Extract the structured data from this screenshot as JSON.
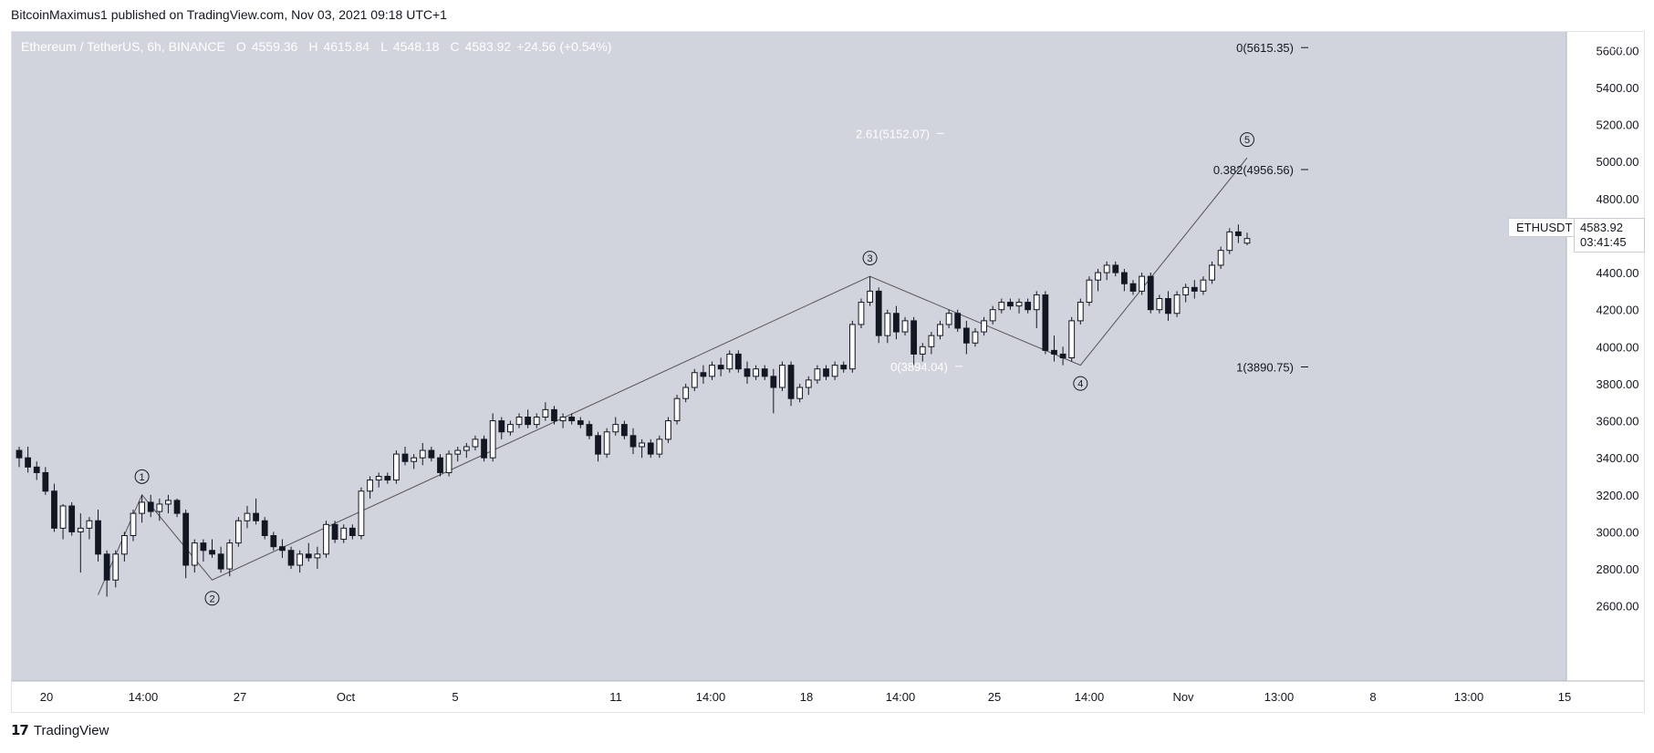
{
  "header": {
    "published": "BitcoinMaximus1 published on TradingView.com, Nov 03, 2021 09:18 UTC+1"
  },
  "legend": {
    "symbol": "Ethereum / TetherUS, 6h, BINANCE",
    "open_key": "O",
    "open": "4559.36",
    "high_key": "H",
    "high": "4615.84",
    "low_key": "L",
    "low": "4548.18",
    "close_key": "C",
    "close": "4583.92",
    "change": "+24.56 (+0.54%)"
  },
  "price_axis": {
    "unit": "USDT",
    "ticks": [
      "5600.00",
      "5400.00",
      "5200.00",
      "5000.00",
      "4800.00",
      "4400.00",
      "4200.00",
      "4000.00",
      "3800.00",
      "3600.00",
      "3400.00",
      "3200.00",
      "3000.00",
      "2800.00",
      "2600.00"
    ]
  },
  "time_axis": {
    "ticks": [
      "20",
      "14:00",
      "27",
      "Oct",
      "5",
      "11",
      "14:00",
      "18",
      "14:00",
      "25",
      "14:00",
      "Nov",
      "13:00",
      "8",
      "13:00",
      "15"
    ]
  },
  "last_price": {
    "symbol": "ETHUSDT",
    "price": "4583.92",
    "countdown": "03:41:45"
  },
  "fib_labels": [
    {
      "text": "0(5615.35)"
    },
    {
      "text": "2.61(5152.07)"
    },
    {
      "text": "0.382(4956.56)"
    },
    {
      "text": "0(3894.04)"
    },
    {
      "text": "1(3890.75)"
    }
  ],
  "wave_labels": [
    "1",
    "2",
    "3",
    "4",
    "5"
  ],
  "footer": {
    "brand": "TradingView",
    "logo": "17"
  },
  "colors": {
    "background": "#d1d4dc",
    "candle": "#131722",
    "candle_up_fill": "#ffffff",
    "candle_down_fill": "#131722",
    "fib_text_white": "#ffffff",
    "fib_text_dark": "#131722",
    "wave_line": "#555555"
  },
  "chart_data": {
    "type": "candlestick",
    "title": "Ethereum / TetherUS, 6h, BINANCE",
    "ylabel": "USDT",
    "ylim": [
      2500,
      5700
    ],
    "x_tick_labels": [
      "20",
      "14:00",
      "27",
      "Oct",
      "5",
      "11",
      "14:00",
      "18",
      "14:00",
      "25",
      "14:00",
      "Nov",
      "13:00",
      "8",
      "13:00",
      "15"
    ],
    "candles": [
      {
        "o": 3440,
        "h": 3460,
        "l": 3350,
        "c": 3400
      },
      {
        "o": 3400,
        "h": 3460,
        "l": 3320,
        "c": 3350
      },
      {
        "o": 3350,
        "h": 3380,
        "l": 3280,
        "c": 3320
      },
      {
        "o": 3320,
        "h": 3350,
        "l": 3200,
        "c": 3220
      },
      {
        "o": 3220,
        "h": 3260,
        "l": 3000,
        "c": 3020
      },
      {
        "o": 3020,
        "h": 3150,
        "l": 2960,
        "c": 3140
      },
      {
        "o": 3140,
        "h": 3160,
        "l": 2980,
        "c": 3000
      },
      {
        "o": 3000,
        "h": 3100,
        "l": 2780,
        "c": 3020
      },
      {
        "o": 3020,
        "h": 3080,
        "l": 2960,
        "c": 3060
      },
      {
        "o": 3060,
        "h": 3120,
        "l": 2840,
        "c": 2880
      },
      {
        "o": 2880,
        "h": 2900,
        "l": 2650,
        "c": 2740
      },
      {
        "o": 2740,
        "h": 2900,
        "l": 2700,
        "c": 2880
      },
      {
        "o": 2880,
        "h": 3000,
        "l": 2840,
        "c": 2980
      },
      {
        "o": 2980,
        "h": 3120,
        "l": 2950,
        "c": 3100
      },
      {
        "o": 3100,
        "h": 3200,
        "l": 3050,
        "c": 3160
      },
      {
        "o": 3160,
        "h": 3200,
        "l": 3080,
        "c": 3110
      },
      {
        "o": 3110,
        "h": 3180,
        "l": 3060,
        "c": 3150
      },
      {
        "o": 3150,
        "h": 3200,
        "l": 3100,
        "c": 3170
      },
      {
        "o": 3170,
        "h": 3180,
        "l": 3080,
        "c": 3100
      },
      {
        "o": 3100,
        "h": 3120,
        "l": 2750,
        "c": 2820
      },
      {
        "o": 2820,
        "h": 2960,
        "l": 2780,
        "c": 2940
      },
      {
        "o": 2940,
        "h": 2960,
        "l": 2840,
        "c": 2900
      },
      {
        "o": 2900,
        "h": 2960,
        "l": 2860,
        "c": 2880
      },
      {
        "o": 2880,
        "h": 2920,
        "l": 2780,
        "c": 2800
      },
      {
        "o": 2800,
        "h": 2960,
        "l": 2760,
        "c": 2940
      },
      {
        "o": 2940,
        "h": 3080,
        "l": 2920,
        "c": 3060
      },
      {
        "o": 3060,
        "h": 3140,
        "l": 3020,
        "c": 3100
      },
      {
        "o": 3100,
        "h": 3180,
        "l": 3040,
        "c": 3060
      },
      {
        "o": 3060,
        "h": 3080,
        "l": 2960,
        "c": 2980
      },
      {
        "o": 2980,
        "h": 3000,
        "l": 2900,
        "c": 2920
      },
      {
        "o": 2920,
        "h": 2960,
        "l": 2860,
        "c": 2900
      },
      {
        "o": 2900,
        "h": 2920,
        "l": 2800,
        "c": 2820
      },
      {
        "o": 2820,
        "h": 2900,
        "l": 2780,
        "c": 2880
      },
      {
        "o": 2880,
        "h": 2940,
        "l": 2840,
        "c": 2860
      },
      {
        "o": 2860,
        "h": 2920,
        "l": 2800,
        "c": 2880
      },
      {
        "o": 2880,
        "h": 3060,
        "l": 2860,
        "c": 3040
      },
      {
        "o": 3040,
        "h": 3060,
        "l": 2940,
        "c": 2960
      },
      {
        "o": 2960,
        "h": 3040,
        "l": 2940,
        "c": 3020
      },
      {
        "o": 3020,
        "h": 3040,
        "l": 2960,
        "c": 2980
      },
      {
        "o": 2980,
        "h": 3240,
        "l": 2960,
        "c": 3220
      },
      {
        "o": 3220,
        "h": 3300,
        "l": 3180,
        "c": 3280
      },
      {
        "o": 3280,
        "h": 3320,
        "l": 3240,
        "c": 3300
      },
      {
        "o": 3300,
        "h": 3320,
        "l": 3260,
        "c": 3280
      },
      {
        "o": 3280,
        "h": 3440,
        "l": 3260,
        "c": 3420
      },
      {
        "o": 3420,
        "h": 3460,
        "l": 3360,
        "c": 3380
      },
      {
        "o": 3380,
        "h": 3420,
        "l": 3340,
        "c": 3400
      },
      {
        "o": 3400,
        "h": 3480,
        "l": 3360,
        "c": 3440
      },
      {
        "o": 3440,
        "h": 3460,
        "l": 3380,
        "c": 3400
      },
      {
        "o": 3400,
        "h": 3420,
        "l": 3300,
        "c": 3320
      },
      {
        "o": 3320,
        "h": 3440,
        "l": 3300,
        "c": 3420
      },
      {
        "o": 3420,
        "h": 3460,
        "l": 3380,
        "c": 3440
      },
      {
        "o": 3440,
        "h": 3480,
        "l": 3400,
        "c": 3460
      },
      {
        "o": 3460,
        "h": 3520,
        "l": 3440,
        "c": 3500
      },
      {
        "o": 3500,
        "h": 3520,
        "l": 3380,
        "c": 3400
      },
      {
        "o": 3400,
        "h": 3640,
        "l": 3380,
        "c": 3600
      },
      {
        "o": 3600,
        "h": 3620,
        "l": 3500,
        "c": 3540
      },
      {
        "o": 3540,
        "h": 3600,
        "l": 3520,
        "c": 3580
      },
      {
        "o": 3580,
        "h": 3640,
        "l": 3560,
        "c": 3620
      },
      {
        "o": 3620,
        "h": 3660,
        "l": 3560,
        "c": 3580
      },
      {
        "o": 3580,
        "h": 3640,
        "l": 3560,
        "c": 3620
      },
      {
        "o": 3620,
        "h": 3700,
        "l": 3600,
        "c": 3660
      },
      {
        "o": 3660,
        "h": 3680,
        "l": 3580,
        "c": 3600
      },
      {
        "o": 3600,
        "h": 3640,
        "l": 3560,
        "c": 3620
      },
      {
        "o": 3620,
        "h": 3640,
        "l": 3580,
        "c": 3600
      },
      {
        "o": 3600,
        "h": 3620,
        "l": 3560,
        "c": 3580
      },
      {
        "o": 3580,
        "h": 3600,
        "l": 3500,
        "c": 3520
      },
      {
        "o": 3520,
        "h": 3540,
        "l": 3380,
        "c": 3420
      },
      {
        "o": 3420,
        "h": 3560,
        "l": 3400,
        "c": 3540
      },
      {
        "o": 3540,
        "h": 3620,
        "l": 3520,
        "c": 3580
      },
      {
        "o": 3580,
        "h": 3600,
        "l": 3500,
        "c": 3520
      },
      {
        "o": 3520,
        "h": 3560,
        "l": 3420,
        "c": 3460
      },
      {
        "o": 3460,
        "h": 3500,
        "l": 3400,
        "c": 3480
      },
      {
        "o": 3480,
        "h": 3500,
        "l": 3400,
        "c": 3420
      },
      {
        "o": 3420,
        "h": 3520,
        "l": 3400,
        "c": 3500
      },
      {
        "o": 3500,
        "h": 3620,
        "l": 3480,
        "c": 3600
      },
      {
        "o": 3600,
        "h": 3740,
        "l": 3580,
        "c": 3720
      },
      {
        "o": 3720,
        "h": 3800,
        "l": 3700,
        "c": 3780
      },
      {
        "o": 3780,
        "h": 3880,
        "l": 3760,
        "c": 3860
      },
      {
        "o": 3860,
        "h": 3900,
        "l": 3800,
        "c": 3840
      },
      {
        "o": 3840,
        "h": 3920,
        "l": 3820,
        "c": 3900
      },
      {
        "o": 3900,
        "h": 3940,
        "l": 3840,
        "c": 3880
      },
      {
        "o": 3880,
        "h": 3980,
        "l": 3860,
        "c": 3960
      },
      {
        "o": 3960,
        "h": 3980,
        "l": 3860,
        "c": 3880
      },
      {
        "o": 3880,
        "h": 3920,
        "l": 3800,
        "c": 3840
      },
      {
        "o": 3840,
        "h": 3900,
        "l": 3820,
        "c": 3880
      },
      {
        "o": 3880,
        "h": 3900,
        "l": 3820,
        "c": 3840
      },
      {
        "o": 3840,
        "h": 3880,
        "l": 3640,
        "c": 3780
      },
      {
        "o": 3780,
        "h": 3920,
        "l": 3760,
        "c": 3900
      },
      {
        "o": 3900,
        "h": 3920,
        "l": 3680,
        "c": 3720
      },
      {
        "o": 3720,
        "h": 3800,
        "l": 3700,
        "c": 3780
      },
      {
        "o": 3780,
        "h": 3840,
        "l": 3740,
        "c": 3820
      },
      {
        "o": 3820,
        "h": 3900,
        "l": 3800,
        "c": 3880
      },
      {
        "o": 3880,
        "h": 3900,
        "l": 3820,
        "c": 3840
      },
      {
        "o": 3840,
        "h": 3920,
        "l": 3820,
        "c": 3900
      },
      {
        "o": 3900,
        "h": 3920,
        "l": 3860,
        "c": 3880
      },
      {
        "o": 3880,
        "h": 4140,
        "l": 3860,
        "c": 4120
      },
      {
        "o": 4120,
        "h": 4260,
        "l": 4100,
        "c": 4240
      },
      {
        "o": 4240,
        "h": 4380,
        "l": 4220,
        "c": 4300
      },
      {
        "o": 4300,
        "h": 4320,
        "l": 4020,
        "c": 4060
      },
      {
        "o": 4060,
        "h": 4200,
        "l": 4020,
        "c": 4180
      },
      {
        "o": 4180,
        "h": 4220,
        "l": 4040,
        "c": 4080
      },
      {
        "o": 4080,
        "h": 4160,
        "l": 4060,
        "c": 4140
      },
      {
        "o": 4140,
        "h": 4160,
        "l": 3900,
        "c": 3960
      },
      {
        "o": 3960,
        "h": 4020,
        "l": 3920,
        "c": 4000
      },
      {
        "o": 4000,
        "h": 4080,
        "l": 3960,
        "c": 4060
      },
      {
        "o": 4060,
        "h": 4140,
        "l": 4040,
        "c": 4120
      },
      {
        "o": 4120,
        "h": 4200,
        "l": 4100,
        "c": 4180
      },
      {
        "o": 4180,
        "h": 4200,
        "l": 4080,
        "c": 4100
      },
      {
        "o": 4100,
        "h": 4140,
        "l": 3960,
        "c": 4020
      },
      {
        "o": 4020,
        "h": 4100,
        "l": 4000,
        "c": 4080
      },
      {
        "o": 4080,
        "h": 4160,
        "l": 4060,
        "c": 4140
      },
      {
        "o": 4140,
        "h": 4220,
        "l": 4120,
        "c": 4200
      },
      {
        "o": 4200,
        "h": 4260,
        "l": 4180,
        "c": 4240
      },
      {
        "o": 4240,
        "h": 4260,
        "l": 4200,
        "c": 4220
      },
      {
        "o": 4220,
        "h": 4260,
        "l": 4180,
        "c": 4240
      },
      {
        "o": 4240,
        "h": 4260,
        "l": 4180,
        "c": 4200
      },
      {
        "o": 4200,
        "h": 4300,
        "l": 4100,
        "c": 4280
      },
      {
        "o": 4280,
        "h": 4300,
        "l": 3960,
        "c": 3980
      },
      {
        "o": 3980,
        "h": 4060,
        "l": 3920,
        "c": 3960
      },
      {
        "o": 3960,
        "h": 4000,
        "l": 3900,
        "c": 3940
      },
      {
        "o": 3940,
        "h": 4160,
        "l": 3920,
        "c": 4140
      },
      {
        "o": 4140,
        "h": 4260,
        "l": 4120,
        "c": 4240
      },
      {
        "o": 4240,
        "h": 4380,
        "l": 4220,
        "c": 4360
      },
      {
        "o": 4360,
        "h": 4420,
        "l": 4300,
        "c": 4400
      },
      {
        "o": 4400,
        "h": 4460,
        "l": 4360,
        "c": 4440
      },
      {
        "o": 4440,
        "h": 4460,
        "l": 4380,
        "c": 4400
      },
      {
        "o": 4400,
        "h": 4420,
        "l": 4300,
        "c": 4340
      },
      {
        "o": 4340,
        "h": 4360,
        "l": 4280,
        "c": 4300
      },
      {
        "o": 4300,
        "h": 4400,
        "l": 4280,
        "c": 4380
      },
      {
        "o": 4380,
        "h": 4400,
        "l": 4180,
        "c": 4200
      },
      {
        "o": 4200,
        "h": 4280,
        "l": 4180,
        "c": 4260
      },
      {
        "o": 4260,
        "h": 4300,
        "l": 4140,
        "c": 4180
      },
      {
        "o": 4180,
        "h": 4300,
        "l": 4160,
        "c": 4280
      },
      {
        "o": 4280,
        "h": 4340,
        "l": 4240,
        "c": 4320
      },
      {
        "o": 4320,
        "h": 4360,
        "l": 4260,
        "c": 4300
      },
      {
        "o": 4300,
        "h": 4380,
        "l": 4280,
        "c": 4360
      },
      {
        "o": 4360,
        "h": 4460,
        "l": 4340,
        "c": 4440
      },
      {
        "o": 4440,
        "h": 4540,
        "l": 4420,
        "c": 4520
      },
      {
        "o": 4520,
        "h": 4640,
        "l": 4500,
        "c": 4620
      },
      {
        "o": 4620,
        "h": 4660,
        "l": 4560,
        "c": 4600
      },
      {
        "o": 4559.36,
        "h": 4615.84,
        "l": 4548.18,
        "c": 4583.92
      }
    ],
    "wave_points": [
      {
        "label": "1",
        "price": 3200
      },
      {
        "label": "2",
        "price": 2740
      },
      {
        "label": "3",
        "price": 4380
      },
      {
        "label": "4",
        "price": 3900
      },
      {
        "label": "5",
        "price": 5020
      }
    ],
    "fib_levels": [
      5615.35,
      5152.07,
      4956.56,
      3894.04,
      3890.75
    ],
    "last_price": 4583.92
  }
}
